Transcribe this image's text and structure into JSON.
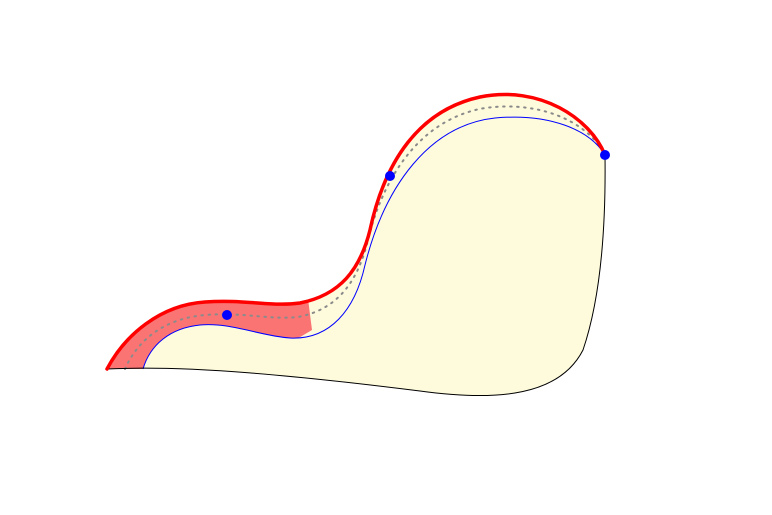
{
  "diagram": {
    "colors": {
      "background": "#ffffff",
      "region_fill": "#fefbdc",
      "highlight_fill": "#fa7474",
      "outer_curve": "#ff0000",
      "inner_curve": "#0000ff",
      "base_curve": "#000000",
      "dotted_curve": "#8a8a8a",
      "points": "#0000ff"
    },
    "elements": [
      "filled-region",
      "highlighted-band",
      "outer-boundary-curve",
      "inner-boundary-curve",
      "dotted-mid-curve",
      "base-curve",
      "marker-point-left",
      "marker-point-middle",
      "marker-point-right"
    ]
  }
}
